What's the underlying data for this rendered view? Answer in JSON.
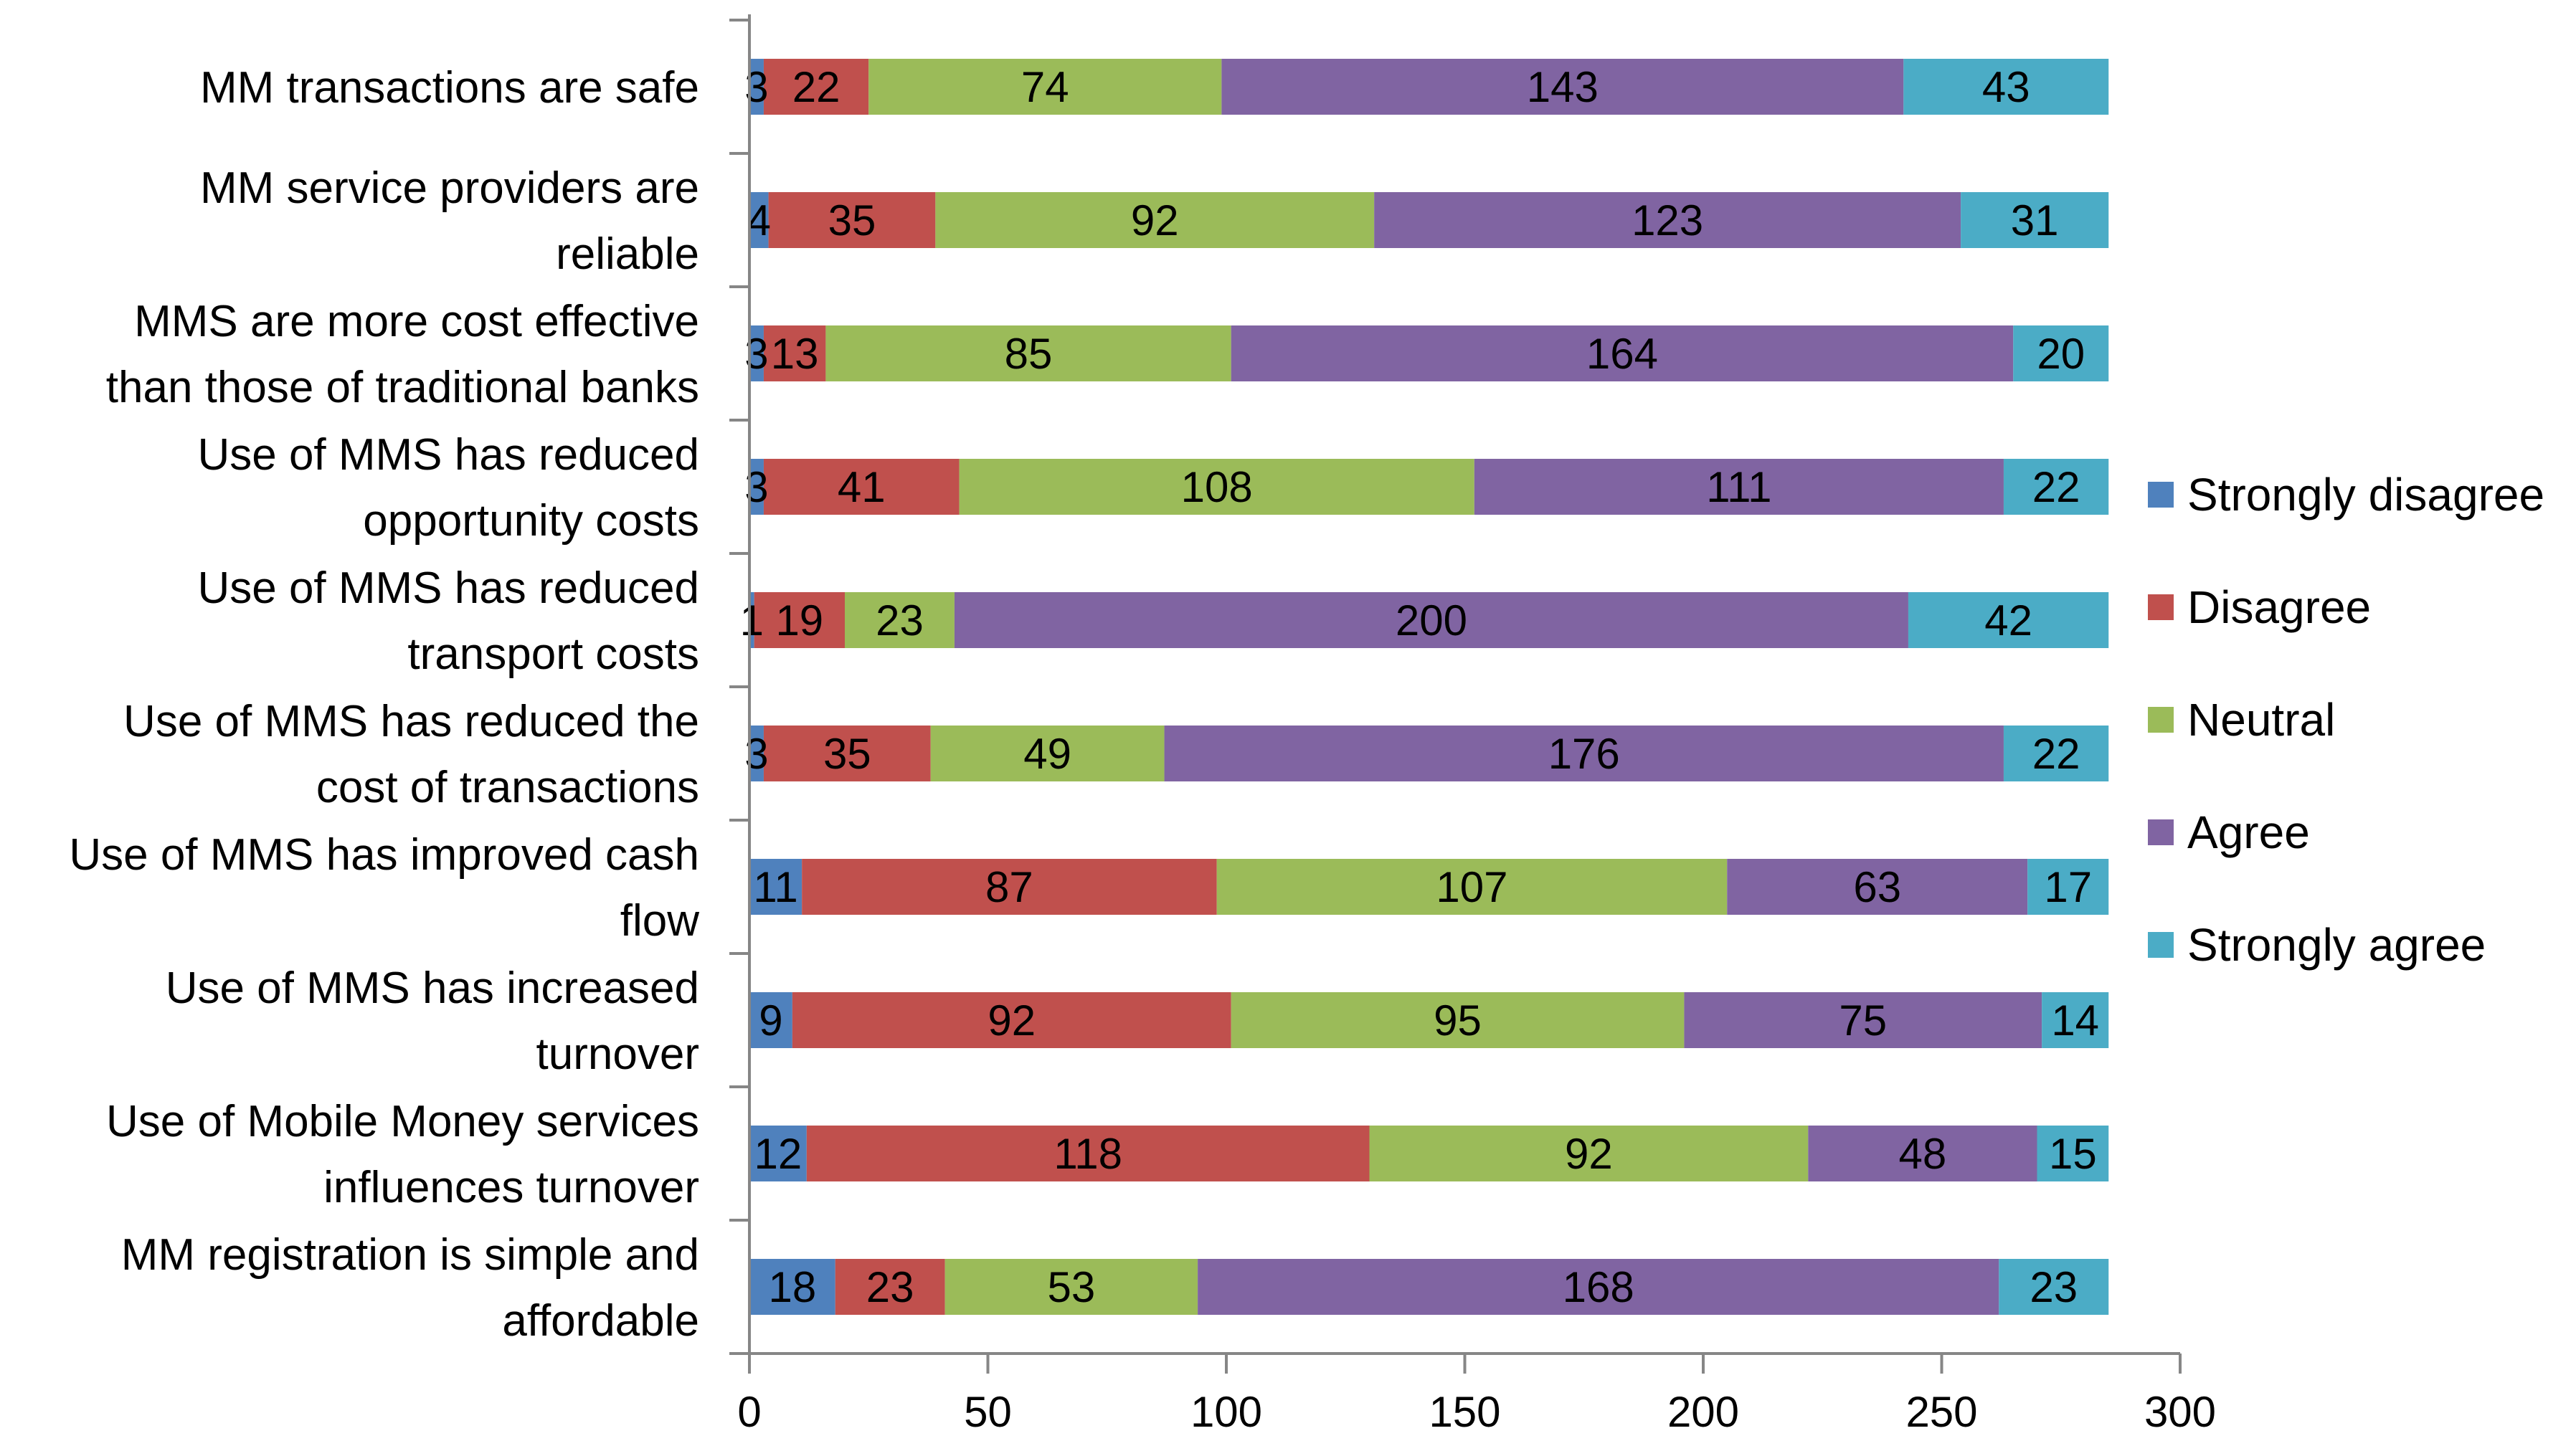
{
  "chart_data": {
    "type": "bar",
    "orientation": "horizontal",
    "stacked": true,
    "title": "",
    "xlabel": "",
    "ylabel": "",
    "xlim": [
      0,
      300
    ],
    "xticks": [
      0,
      50,
      100,
      150,
      200,
      250,
      300
    ],
    "grid": false,
    "legend_position": "right",
    "categories": [
      [
        "MM transactions are safe"
      ],
      [
        "MM service providers are",
        "reliable"
      ],
      [
        "MMS are more cost effective",
        "than those of traditional banks"
      ],
      [
        "Use of MMS has reduced",
        "opportunity costs"
      ],
      [
        "Use of MMS has reduced",
        "transport costs"
      ],
      [
        "Use of MMS has reduced the",
        "cost of transactions"
      ],
      [
        "Use of MMS has improved cash",
        "flow"
      ],
      [
        "Use of MMS has increased",
        "turnover"
      ],
      [
        "Use of Mobile Money services",
        "influences turnover"
      ],
      [
        "MM registration is simple and",
        "affordable"
      ]
    ],
    "series": [
      {
        "name": "Strongly disagree",
        "color": "#4F81BD",
        "values": [
          3,
          4,
          3,
          3,
          1,
          3,
          11,
          9,
          12,
          18
        ]
      },
      {
        "name": "Disagree",
        "color": "#C0504D",
        "values": [
          22,
          35,
          13,
          41,
          19,
          35,
          87,
          92,
          118,
          23
        ]
      },
      {
        "name": "Neutral",
        "color": "#9BBB59",
        "values": [
          74,
          92,
          85,
          108,
          23,
          49,
          107,
          95,
          92,
          53
        ]
      },
      {
        "name": "Agree",
        "color": "#8064A2",
        "values": [
          143,
          123,
          164,
          111,
          200,
          176,
          63,
          75,
          48,
          168
        ]
      },
      {
        "name": "Strongly agree",
        "color": "#4BACC6",
        "values": [
          43,
          31,
          20,
          22,
          42,
          22,
          17,
          14,
          15,
          23
        ]
      }
    ]
  }
}
